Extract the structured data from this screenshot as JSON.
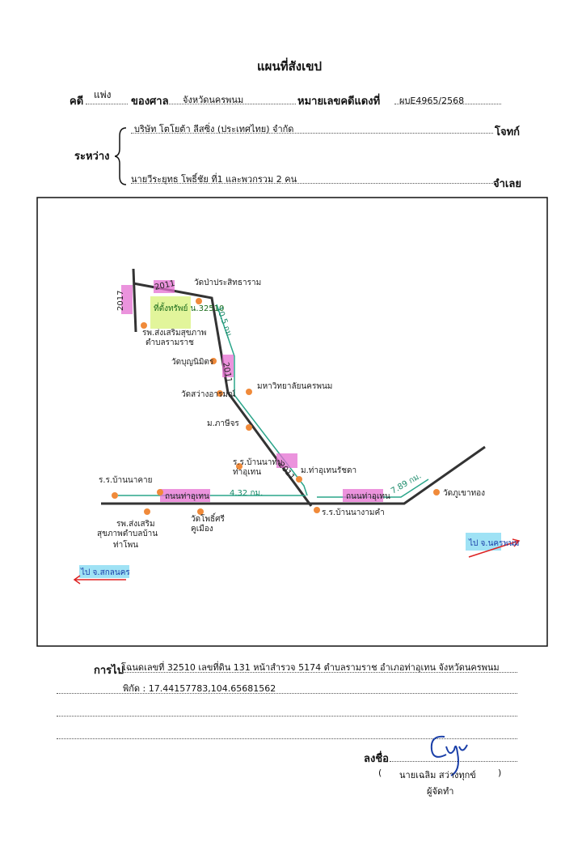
{
  "header": {
    "title": "แผนที่สังเขป",
    "case_label": "คดี",
    "case_type": "แพ่ง",
    "court_label": "ของศาล",
    "court": "จังหวัดนครพนม",
    "number_label": "หมายเลขคดีแดงที่",
    "number": "ผบE4965/2568"
  },
  "parties": {
    "between_label": "ระหว่าง",
    "plaintiff": "บริษัท โตโยต้า ลีสซิ่ง (ประเทศไทย) จำกัด",
    "plaintiff_role": "โจทก์",
    "defendant": "นายวีระยุทธ โพธิ์ชัย ที่1 และพวกรวม 2 คน",
    "defendant_role": "จำเลย"
  },
  "map": {
    "labels": [
      "2017",
      "2011",
      "ที่ตั้งทรัพย์ น.32510",
      "วัดป่าประสิทธาราม",
      "รพ.ส่งเสริมสุขภาพ",
      "ตำบลรามราช",
      "10.5 กม.",
      "วัดบุญนิมิตร",
      "2011",
      "วัดสว่างอารมณ์",
      "มหาวิทยาลัยนครพนม",
      "ม.ภาษีจร",
      "ร.ร.บ้านนาทม",
      "ท่าอุเทน",
      "2011",
      "ม.ท่าอุเทนรัชดา",
      "ร.ร.บ้านนาคาย",
      "ถนนท่าอุเทน",
      "4.32 กม.",
      "ร.ร.บ้านนางามคำ",
      "ถนนท่าอุเทน",
      "7.89 กม.",
      "วัดภูเขาทอง",
      "รพ.ส่งเสริม",
      "สุขภาพตำบลบ้าน",
      "ท่าโพน",
      "วัดโพธิ์ศรี",
      "คูเมือง",
      "ไป จ.นครพนม",
      "ไป จ.สกลนคร"
    ]
  },
  "footer": {
    "route_label": "การไป",
    "route": "โฉนดเลขที่ 32510  เลขที่ดิน 131 หน้าสำรวจ 5174 ตำบลรามราช อำเภอท่าอุเทน จังหวัดนครพนม",
    "coordinates": "พิกัด : 17.44157783,104.65681562",
    "sign_label": "ลงชื่อ",
    "open_paren": "(",
    "signer": "นายเฉลิม  สว่างทุกข์",
    "close_paren": ")",
    "signer_role": "ผู้จัดทำ"
  }
}
